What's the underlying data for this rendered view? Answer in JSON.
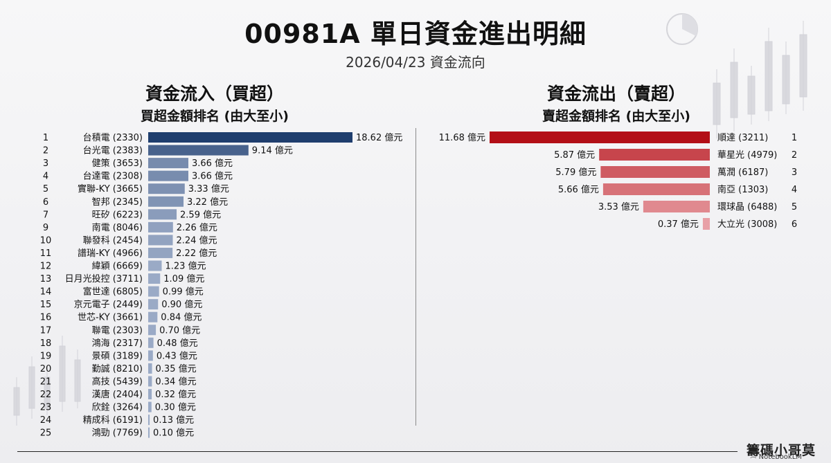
{
  "header": {
    "title": "00981A 單日資金進出明細",
    "subtitle": "2026/04/23 資金流向"
  },
  "inflow": {
    "title": "資金流入（買超）",
    "subtitle": "買超金額排名 (由大至小)"
  },
  "outflow": {
    "title": "資金流出（賣超）",
    "subtitle": "賣超金額排名 (由大至小)"
  },
  "watermark": {
    "text": "籌碼小哥莫",
    "brand": "NotebookLM"
  },
  "colors": {
    "inflow_dark": "#1f3e6e",
    "inflow_light": "#9aaac6",
    "outflow_dark": "#b30f17",
    "outflow_light": "#eba8ad"
  },
  "chart_data": [
    {
      "type": "bar",
      "orientation": "horizontal",
      "unit": "億元",
      "ranks": [
        "1",
        "2",
        "3",
        "4",
        "5",
        "6",
        "7",
        "9",
        "10",
        "11",
        "12",
        "13",
        "14",
        "15",
        "16",
        "17",
        "18",
        "19",
        "20",
        "21",
        "22",
        "23",
        "24",
        "25"
      ],
      "categories": [
        "台積電 (2330)",
        "台光電 (2383)",
        "健策 (3653)",
        "台達電 (2308)",
        "實聯-KY (3665)",
        "智邦 (2345)",
        "旺矽 (6223)",
        "南電 (8046)",
        "聯發科 (2454)",
        "譜瑞-KY (4966)",
        "緯穎 (6669)",
        "日月光投控 (3711)",
        "富世達 (6805)",
        "京元電子 (2449)",
        "世芯-KY (3661)",
        "聯電 (2303)",
        "鴻海 (2317)",
        "景碩 (3189)",
        "勤誠 (8210)",
        "高技 (5439)",
        "漢唐 (2404)",
        "欣銓 (3264)",
        "精成科 (6191)",
        "鴻勁 (7769)"
      ],
      "values": [
        18.62,
        9.14,
        3.66,
        3.66,
        3.33,
        3.22,
        2.59,
        2.26,
        2.24,
        2.22,
        1.23,
        1.09,
        0.99,
        0.9,
        0.84,
        0.7,
        0.48,
        0.43,
        0.35,
        0.34,
        0.32,
        0.3,
        0.13,
        0.1
      ],
      "labels": [
        "18.62 億元",
        "9.14 億元",
        "3.66 億元",
        "3.66 億元",
        "3.33 億元",
        "3.22 億元",
        "2.59 億元",
        "2.26 億元",
        "2.24 億元",
        "2.22 億元",
        "1.23 億元",
        "1.09 億元",
        "0.99 億元",
        "0.90 億元",
        "0.84 億元",
        "0.70 億元",
        "0.48 億元",
        "0.43 億元",
        "0.35 億元",
        "0.34 億元",
        "0.32 億元",
        "0.30 億元",
        "0.13 億元",
        "0.10 億元"
      ]
    },
    {
      "type": "bar",
      "orientation": "horizontal",
      "unit": "億元",
      "ranks": [
        "1",
        "2",
        "3",
        "4",
        "5",
        "6"
      ],
      "categories": [
        "順達 (3211)",
        "華星光 (4979)",
        "萬潤 (6187)",
        "南亞 (1303)",
        "環球晶 (6488)",
        "大立光 (3008)"
      ],
      "values": [
        11.68,
        5.87,
        5.79,
        5.66,
        3.53,
        0.37
      ],
      "labels": [
        "11.68 億元",
        "5.87 億元",
        "5.79 億元",
        "5.66 億元",
        "3.53 億元",
        "0.37 億元"
      ]
    }
  ]
}
